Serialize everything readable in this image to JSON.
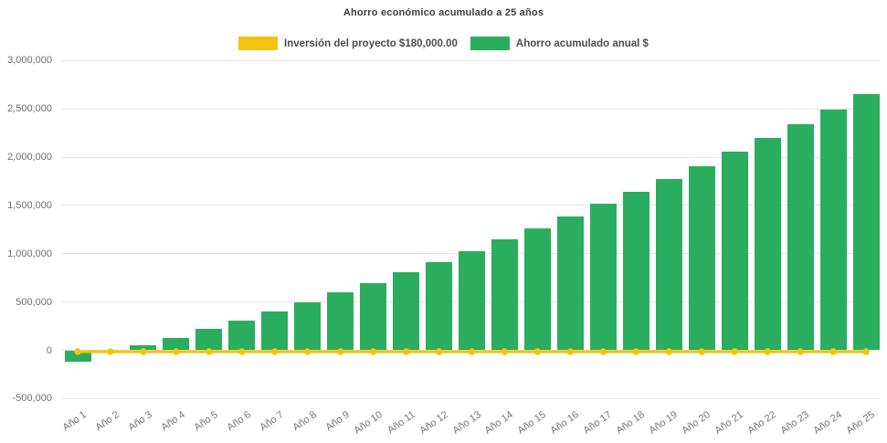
{
  "chart_data": {
    "type": "bar",
    "title": "Ahorro económico acumulado a 25 años",
    "categories": [
      "Año 1",
      "Año 2",
      "Año 3",
      "Año 4",
      "Año 5",
      "Año 6",
      "Año 7",
      "Año 8",
      "Año 9",
      "Año 10",
      "Año 11",
      "Año 12",
      "Año 13",
      "Año 14",
      "Año 15",
      "Año 16",
      "Año 17",
      "Año 18",
      "Año 19",
      "Año 20",
      "Año 21",
      "Año 22",
      "Año 23",
      "Año 24",
      "Año 25"
    ],
    "series": [
      {
        "name": "Ahorro acumulado anual $",
        "type": "bar",
        "color": "#2bad5f",
        "values": [
          -120000,
          -25000,
          50000,
          130000,
          220000,
          310000,
          400000,
          495000,
          605000,
          700000,
          810000,
          915000,
          1030000,
          1150000,
          1260000,
          1385000,
          1515000,
          1640000,
          1770000,
          1910000,
          2055000,
          2200000,
          2345000,
          2495000,
          2650000
        ]
      },
      {
        "name": "Inversión del proyecto $180,000.00",
        "type": "line",
        "color": "#f2c40f",
        "constant_value": 0
      }
    ],
    "y_ticks": [
      {
        "label": "3,000,000",
        "value": 3000000
      },
      {
        "label": "2,500,000",
        "value": 2500000
      },
      {
        "label": "2,000,000",
        "value": 2000000
      },
      {
        "label": "1,500,000",
        "value": 1500000
      },
      {
        "label": "1,000,000",
        "value": 1000000
      },
      {
        "label": "500,000",
        "value": 500000
      },
      {
        "label": "0",
        "value": 0
      },
      {
        "label": "-500,000",
        "value": -500000
      }
    ],
    "ylim": [
      -500000,
      3000000
    ],
    "legend_position": "top",
    "grid": "horizontal-faint"
  }
}
